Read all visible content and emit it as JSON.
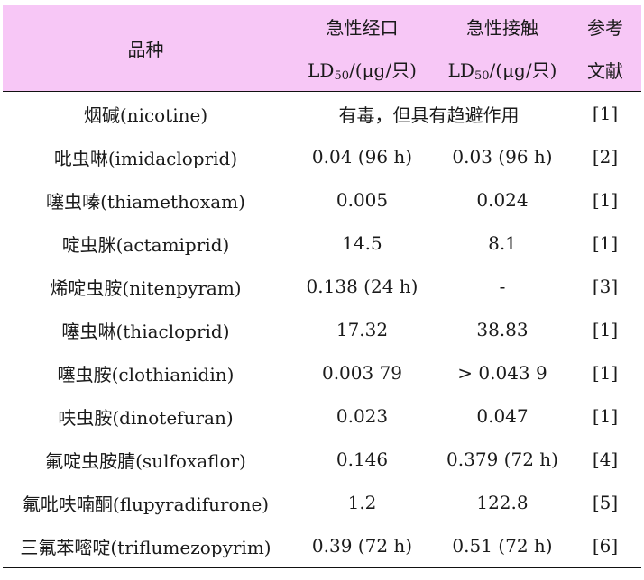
{
  "table": {
    "header": {
      "variety": "品种",
      "oral_title": "急性经口",
      "contact_title": "急性接触",
      "ref_title_line1": "参考",
      "ref_title_line2": "文献",
      "ld_prefix": "LD",
      "ld_sub": "50",
      "ld_unit": "/(μg/只)"
    },
    "rows": [
      {
        "name": "烟碱(nicotine)",
        "merged": "有毒，但具有趋避作用",
        "ref": "[1]"
      },
      {
        "name": "吡虫啉(imidacloprid)",
        "oral": "0.04 (96 h)",
        "contact": "0.03 (96 h)",
        "ref": "[2]"
      },
      {
        "name": "噻虫嗪(thiamethoxam)",
        "oral": "0.005",
        "contact": "0.024",
        "ref": "[1]"
      },
      {
        "name": "啶虫脒(actamiprid)",
        "oral": "14.5",
        "contact": "8.1",
        "ref": "[1]"
      },
      {
        "name": "烯啶虫胺(nitenpyram)",
        "oral": "0.138 (24 h)",
        "contact": "-",
        "ref": "[3]"
      },
      {
        "name": "噻虫啉(thiacloprid)",
        "oral": "17.32",
        "contact": "38.83",
        "ref": "[1]"
      },
      {
        "name": "噻虫胺(clothianidin)",
        "oral": "0.003 79",
        "contact": "> 0.043 9",
        "ref": "[1]"
      },
      {
        "name": "呋虫胺(dinotefuran)",
        "oral": "0.023",
        "contact": "0.047",
        "ref": "[1]"
      },
      {
        "name": "氟啶虫胺腈(sulfoxaflor)",
        "oral": "0.146",
        "contact": "0.379 (72 h)",
        "ref": "[4]"
      },
      {
        "name": "氟吡呋喃酮(flupyradifurone)",
        "oral": "1.2",
        "contact": "122.8",
        "ref": "[5]"
      },
      {
        "name": "三氟苯嘧啶(triflumezopyrim)",
        "oral": "0.39 (72 h)",
        "contact": "0.51 (72 h)",
        "ref": "[6]"
      }
    ]
  }
}
